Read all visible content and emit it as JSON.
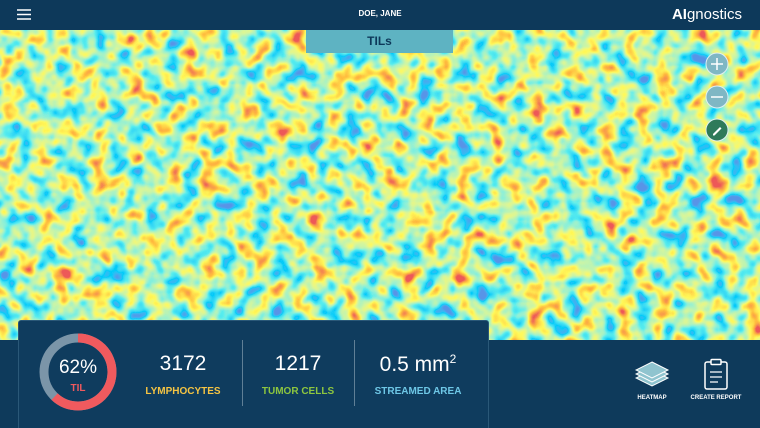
{
  "header": {
    "patient_name": "DOE, JANE",
    "logo": {
      "bold": "AI",
      "rest": "gnostics"
    }
  },
  "viewer": {
    "tab": "TILs"
  },
  "stats": {
    "gauge": {
      "value": 62,
      "label": "62%",
      "caption": "TIL"
    },
    "items": [
      {
        "value": 3172,
        "label": "LYMPHOCYTES"
      },
      {
        "value": 1217,
        "label": "TUMOR CELLS"
      },
      {
        "value": "0.5 mm",
        "sup": "2",
        "label": "STREAMED AREA"
      }
    ]
  },
  "actions": [
    {
      "label": "HEATMAP"
    },
    {
      "label": "CREATE REPORT"
    }
  ]
}
